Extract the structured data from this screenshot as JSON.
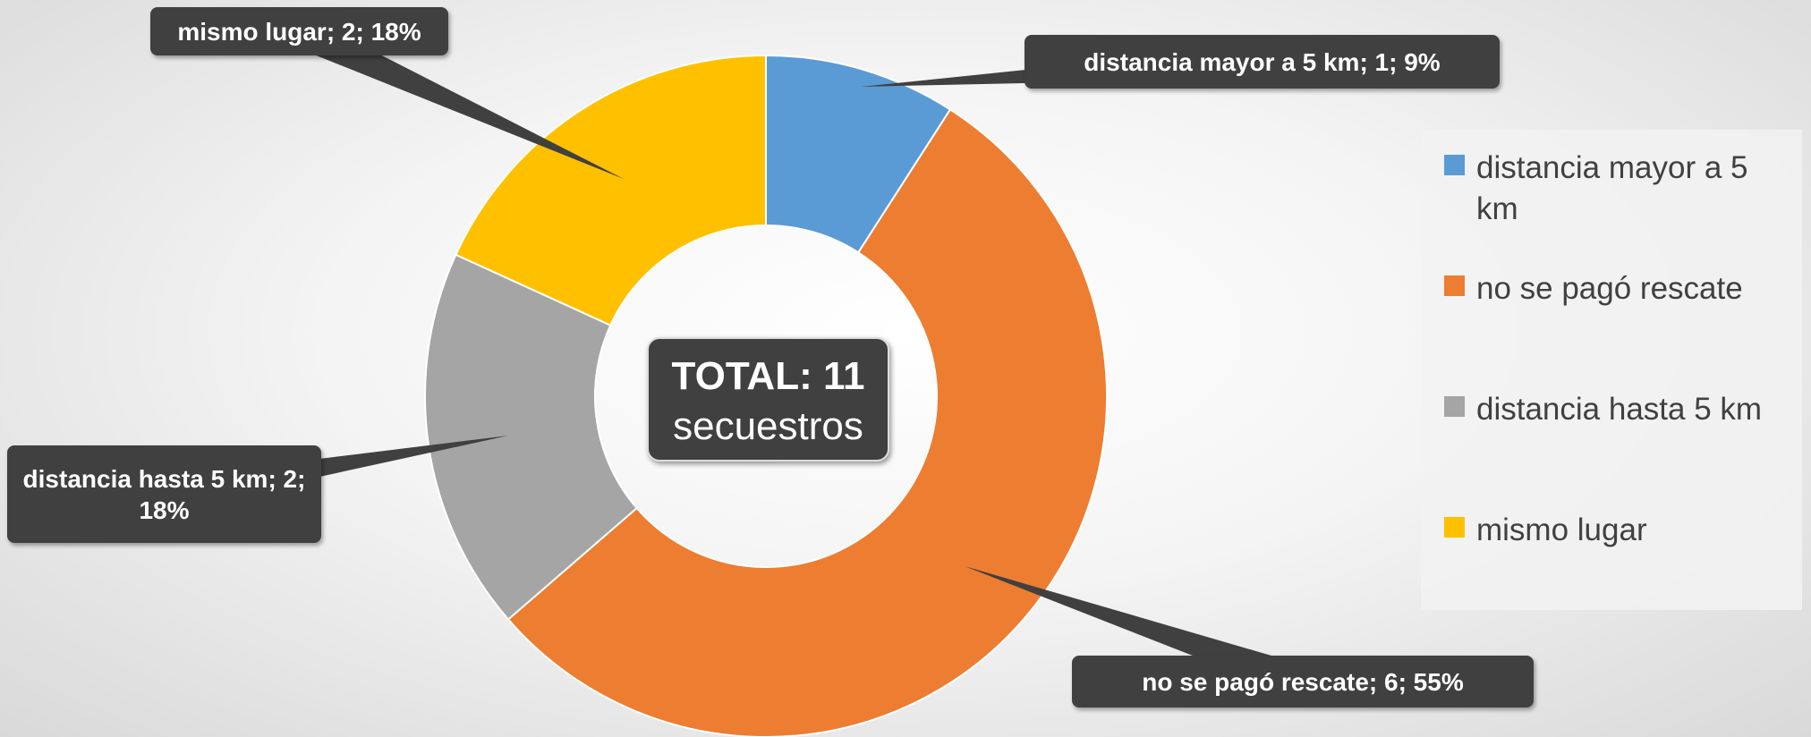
{
  "chart_data": {
    "type": "doughnut",
    "categories": [
      "distancia mayor a 5 km",
      "no se pagó rescate",
      "distancia hasta 5 km",
      "mismo lugar"
    ],
    "values": [
      1,
      6,
      2,
      2
    ],
    "value_labels": [
      "distancia mayor a 5 km; 1; 9%",
      "no se pagó rescate; 6; 55%",
      "distancia hasta 5 km; 2; 18%",
      "mismo lugar; 2; 18%"
    ],
    "colors": [
      "#5b9bd5",
      "#ed7d31",
      "#a5a5a5",
      "#ffc000"
    ],
    "center_label": [
      "TOTAL: 11",
      "secuestros"
    ],
    "legend": "right"
  }
}
